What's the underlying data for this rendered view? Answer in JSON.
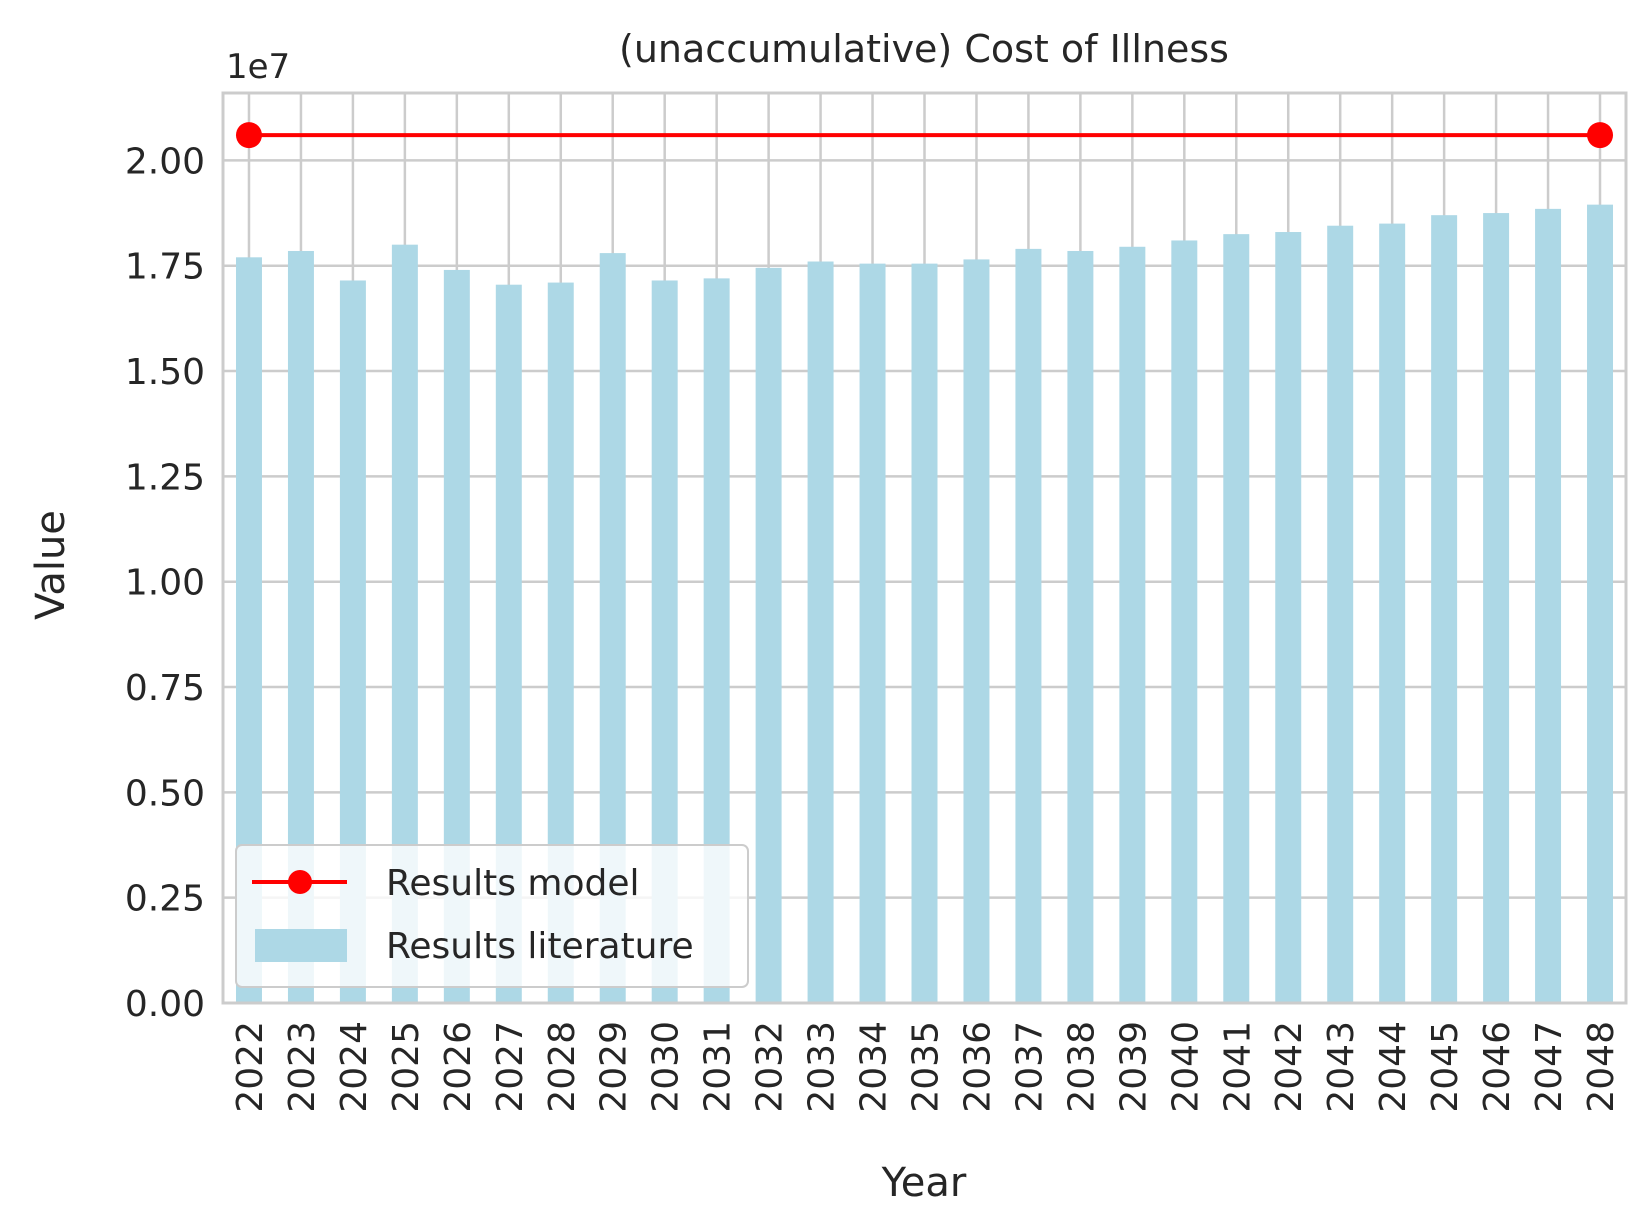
{
  "chart_data": {
    "type": "bar",
    "title": "(unaccumulative) Cost of Illness",
    "xlabel": "Year",
    "ylabel": "Value",
    "y_offset_label": "1e7",
    "y_scale": 10000000,
    "ylim": [
      0,
      21600000
    ],
    "yticks": [
      0,
      2500000,
      5000000,
      7500000,
      10000000,
      12500000,
      15000000,
      17500000,
      20000000
    ],
    "ytick_labels": [
      "0.00",
      "0.25",
      "0.50",
      "0.75",
      "1.00",
      "1.25",
      "1.50",
      "1.75",
      "2.00"
    ],
    "categories": [
      "2022",
      "2023",
      "2024",
      "2025",
      "2026",
      "2027",
      "2028",
      "2029",
      "2030",
      "2031",
      "2032",
      "2033",
      "2034",
      "2035",
      "2036",
      "2037",
      "2038",
      "2039",
      "2040",
      "2041",
      "2042",
      "2043",
      "2044",
      "2045",
      "2046",
      "2047",
      "2048"
    ],
    "grid": true,
    "legend_position": "lower-left",
    "series": [
      {
        "name": "Results literature",
        "kind": "bar",
        "color": "#add8e6",
        "values": [
          17700000,
          17850000,
          17150000,
          18000000,
          17400000,
          17050000,
          17100000,
          17800000,
          17150000,
          17200000,
          17450000,
          17600000,
          17550000,
          17550000,
          17650000,
          17900000,
          17850000,
          17950000,
          18100000,
          18250000,
          18300000,
          18450000,
          18500000,
          18700000,
          18750000,
          18850000,
          18950000
        ]
      },
      {
        "name": "Results model",
        "kind": "line",
        "color": "#ff0000",
        "points": [
          {
            "x": "2022",
            "y": 20600000
          },
          {
            "x": "2048",
            "y": 20600000
          }
        ]
      }
    ]
  }
}
